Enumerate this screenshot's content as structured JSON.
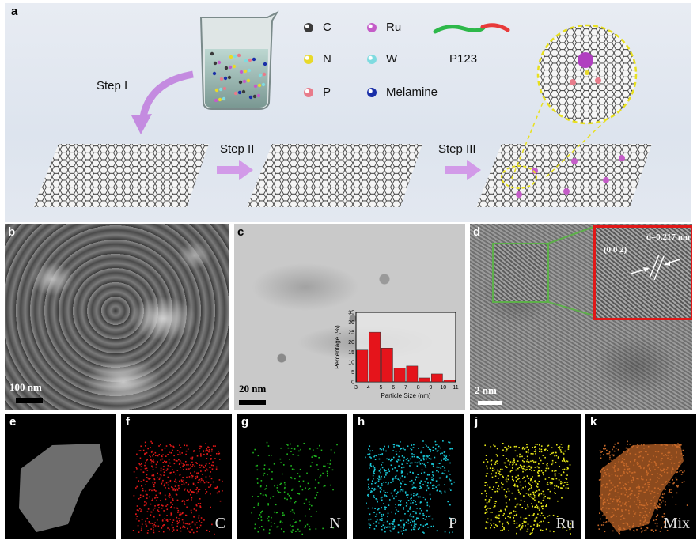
{
  "panel_a": {
    "label": "a",
    "legend": [
      {
        "symbol": "C",
        "color": "#3a3a3a"
      },
      {
        "symbol": "Ru",
        "color": "#c45cc8"
      },
      {
        "symbol": "N",
        "color": "#e8d92a"
      },
      {
        "symbol": "W",
        "color": "#7fdbe0"
      },
      {
        "symbol": "P",
        "color": "#e87b8a"
      },
      {
        "symbol": "Melamine",
        "color": "#1a2fa8"
      }
    ],
    "polymer_label": "P123",
    "steps": [
      "Step I",
      "Step II",
      "Step III"
    ]
  },
  "panel_b": {
    "label": "b",
    "scale_bar": "100 nm"
  },
  "panel_c": {
    "label": "c",
    "scale_bar": "20 nm",
    "chart_data": {
      "type": "bar",
      "xlabel": "Particle Size (nm)",
      "ylabel": "Percentage (%)",
      "x_ticks": [
        "3",
        "4",
        "5",
        "6",
        "7",
        "8",
        "9",
        "10",
        "11"
      ],
      "y_ticks": [
        "0",
        "5",
        "10",
        "15",
        "20",
        "25",
        "30",
        "35"
      ],
      "ylim": [
        0,
        35
      ],
      "categories": [
        "3.5",
        "4.5",
        "5.5",
        "6.5",
        "7.5",
        "8.5",
        "9.5",
        "10.5"
      ],
      "values": [
        16,
        25,
        17,
        7,
        8,
        2,
        4,
        1
      ],
      "bar_color": "#e5141b"
    }
  },
  "panel_d": {
    "label": "d",
    "scale_bar": "2 nm",
    "d_spacing": "d=0.217 nm",
    "plane": "(0 0 2)"
  },
  "mapping": [
    {
      "label": "e",
      "element": "",
      "color": "#c8c8c8"
    },
    {
      "label": "f",
      "element": "C",
      "color": "#e01818"
    },
    {
      "label": "g",
      "element": "N",
      "color": "#1fb81f"
    },
    {
      "label": "h",
      "element": "P",
      "color": "#19c8d8"
    },
    {
      "label": "j",
      "element": "Ru",
      "color": "#e8e818"
    },
    {
      "label": "k",
      "element": "Mix",
      "color": "#c86a2a"
    }
  ]
}
